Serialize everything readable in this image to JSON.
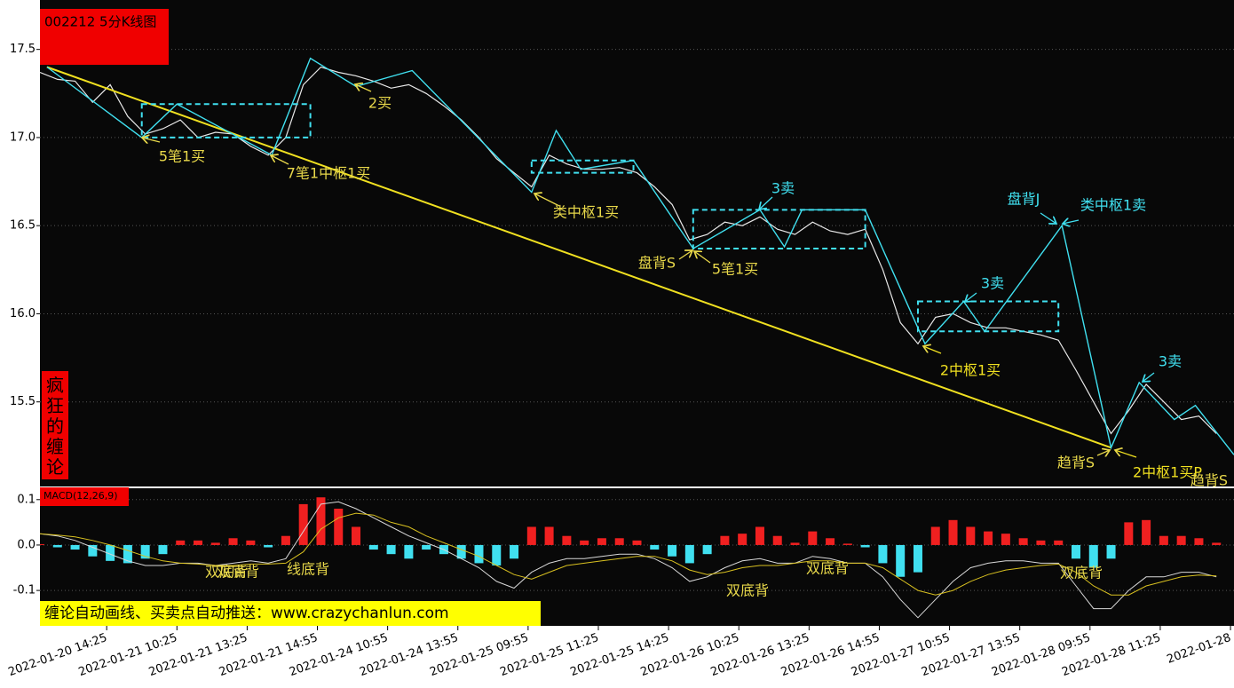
{
  "chart_data": [
    {
      "type": "line",
      "title": "002212 5分K线图",
      "side_label": "疯狂的缠论",
      "xlim": [
        0,
        340
      ],
      "ylim": [
        15.02,
        17.73
      ],
      "yticks": [
        17.5,
        {
          "value": 17.0,
          "label": "17.0"
        },
        16.5,
        {
          "value": 16.0,
          "label": "16.0"
        },
        15.5
      ],
      "xticks": [
        {
          "value": 19,
          "label": "2022-01-20 14:25"
        },
        {
          "value": 39,
          "label": "2022-01-21 10:25"
        },
        {
          "value": 59,
          "label": "2022-01-21 13:25"
        },
        {
          "value": 79,
          "label": "2022-01-21 14:55"
        },
        {
          "value": 99,
          "label": "2022-01-24 10:55"
        },
        {
          "value": 119,
          "label": "2022-01-24 13:55"
        },
        {
          "value": 139,
          "label": "2022-01-25 09:55"
        },
        {
          "value": 159,
          "label": "2022-01-25 11:25"
        },
        {
          "value": 179,
          "label": "2022-01-25 14:25"
        },
        {
          "value": 199,
          "label": "2022-01-26 10:25"
        },
        {
          "value": 219,
          "label": "2022-01-26 13:25"
        },
        {
          "value": 239,
          "label": "2022-01-26 14:55"
        },
        {
          "value": 259,
          "label": "2022-01-27 10:55"
        },
        {
          "value": 279,
          "label": "2022-01-27 13:55"
        },
        {
          "value": 299,
          "label": "2022-01-28 09:55"
        },
        {
          "value": 319,
          "label": "2022-01-28 11:25"
        },
        {
          "value": 339,
          "label": "2022-01-28"
        }
      ],
      "grid": true,
      "x": [
        0,
        5,
        10,
        15,
        20,
        25,
        30,
        35,
        40,
        45,
        50,
        55,
        60,
        65,
        70,
        75,
        80,
        85,
        90,
        95,
        100,
        105,
        110,
        115,
        120,
        125,
        130,
        135,
        140,
        145,
        150,
        155,
        160,
        165,
        170,
        175,
        180,
        185,
        190,
        195,
        200,
        205,
        210,
        215,
        220,
        225,
        230,
        235,
        240,
        245,
        250,
        255,
        260,
        265,
        270,
        275,
        280,
        285,
        290,
        295,
        300,
        305,
        310,
        315,
        320,
        325,
        330,
        335
      ],
      "series": [
        {
          "name": "close",
          "color": "#e8e8e8",
          "values": [
            17.37,
            17.33,
            17.32,
            17.2,
            17.3,
            17.12,
            17.02,
            17.05,
            17.1,
            17.0,
            17.03,
            17.02,
            16.95,
            16.9,
            17.0,
            17.3,
            17.4,
            17.37,
            17.35,
            17.32,
            17.28,
            17.3,
            17.25,
            17.18,
            17.1,
            17.0,
            16.88,
            16.8,
            16.72,
            16.9,
            16.85,
            16.82,
            16.82,
            16.83,
            16.8,
            16.72,
            16.62,
            16.42,
            16.45,
            16.52,
            16.5,
            16.55,
            16.48,
            16.45,
            16.52,
            16.47,
            16.45,
            16.48,
            16.25,
            15.95,
            15.83,
            15.98,
            16.0,
            15.95,
            15.92,
            15.92,
            15.9,
            15.88,
            15.85,
            15.68,
            15.5,
            15.32,
            15.45,
            15.6,
            15.5,
            15.4,
            15.42,
            15.32
          ]
        }
      ],
      "strokes": {
        "color": "#40e0f0",
        "x": [
          2,
          29,
          39,
          66,
          77,
          90,
          106,
          140,
          147,
          154,
          169,
          186,
          205,
          212,
          217,
          235,
          252,
          263,
          269,
          291,
          305,
          313,
          323,
          329,
          340
        ],
        "y": [
          17.4,
          17.0,
          17.19,
          16.9,
          17.45,
          17.29,
          17.38,
          16.69,
          17.04,
          16.82,
          16.87,
          16.37,
          16.59,
          16.38,
          16.59,
          16.59,
          15.83,
          16.07,
          15.9,
          16.5,
          15.24,
          15.61,
          15.4,
          15.48,
          15.2
        ]
      },
      "trendline": {
        "color": "#f0e020",
        "x": [
          2,
          305
        ],
        "y": [
          17.4,
          15.24
        ]
      },
      "boxes": {
        "color": "#40e0f0",
        "items": [
          {
            "x": [
              29,
              77
            ],
            "y": [
              17.0,
              17.19
            ]
          },
          {
            "x": [
              140,
              169
            ],
            "y": [
              16.8,
              16.87
            ]
          },
          {
            "x": [
              186,
              235
            ],
            "y": [
              16.37,
              16.59
            ]
          },
          {
            "x": [
              250,
              290
            ],
            "y": [
              15.9,
              16.07
            ]
          }
        ]
      },
      "annotations": [
        {
          "text": "5笔1买",
          "color": "#e8d84a"
        },
        {
          "text": "7笔1中枢1买",
          "color": "#e8d84a"
        },
        {
          "text": "2买",
          "color": "#e8d84a"
        },
        {
          "text": "类中枢1买",
          "color": "#e8d84a"
        },
        {
          "text": "盘背S",
          "color": "#e8d84a"
        },
        {
          "text": "5笔1买",
          "color": "#e8d84a"
        },
        {
          "text": "3卖",
          "color": "#40e0f0"
        },
        {
          "text": "盘背J",
          "color": "#40e0f0"
        },
        {
          "text": "类中枢1卖",
          "color": "#40e0f0"
        },
        {
          "text": "3卖",
          "color": "#40e0f0"
        },
        {
          "text": "2中枢1买",
          "color": "#f0e020"
        },
        {
          "text": "3卖",
          "color": "#40e0f0"
        },
        {
          "text": "趋背S",
          "color": "#e8d84a"
        },
        {
          "text": "2中枢1买P",
          "color": "#f0e020"
        },
        {
          "text": "趋背S",
          "color": "#e8d84a"
        }
      ]
    },
    {
      "type": "bar",
      "title": "MACD(12,26,9)",
      "xlim": [
        0,
        340
      ],
      "ylim": [
        -0.178,
        0.125
      ],
      "yticks": [
        0.1,
        {
          "value": 0,
          "label": "0.0"
        },
        -0.1
      ],
      "up_color": "#f02020",
      "down_color": "#40e0f0",
      "x": [
        0,
        5,
        10,
        15,
        20,
        25,
        30,
        35,
        40,
        45,
        50,
        55,
        60,
        65,
        70,
        75,
        80,
        85,
        90,
        95,
        100,
        105,
        110,
        115,
        120,
        125,
        130,
        135,
        140,
        145,
        150,
        155,
        160,
        165,
        170,
        175,
        180,
        185,
        190,
        195,
        200,
        205,
        210,
        215,
        220,
        225,
        230,
        235,
        240,
        245,
        250,
        255,
        260,
        265,
        270,
        275,
        280,
        285,
        290,
        295,
        300,
        305,
        310,
        315,
        320,
        325,
        330,
        335
      ],
      "values": [
        0.002,
        -0.005,
        -0.01,
        -0.025,
        -0.035,
        -0.04,
        -0.03,
        -0.02,
        0.01,
        0.01,
        0.005,
        0.015,
        0.01,
        -0.005,
        0.02,
        0.09,
        0.105,
        0.08,
        0.04,
        -0.01,
        -0.02,
        -0.03,
        -0.01,
        -0.02,
        -0.03,
        -0.04,
        -0.045,
        -0.03,
        0.04,
        0.04,
        0.02,
        0.01,
        0.015,
        0.015,
        0.01,
        -0.01,
        -0.025,
        -0.04,
        -0.02,
        0.02,
        0.025,
        0.04,
        0.02,
        0.005,
        0.03,
        0.015,
        0.003,
        -0.005,
        -0.04,
        -0.07,
        -0.06,
        0.04,
        0.055,
        0.04,
        0.03,
        0.025,
        0.015,
        0.01,
        0.01,
        -0.03,
        -0.05,
        -0.03,
        0.05,
        0.055,
        0.02,
        0.02,
        0.015,
        0.005
      ],
      "series": [
        {
          "name": "DIF",
          "color": "#d8d8d8",
          "values": [
            0.025,
            0.02,
            0.01,
            -0.005,
            -0.02,
            -0.035,
            -0.045,
            -0.045,
            -0.04,
            -0.04,
            -0.045,
            -0.04,
            -0.035,
            -0.04,
            -0.03,
            0.03,
            0.09,
            0.095,
            0.08,
            0.06,
            0.04,
            0.02,
            0.005,
            -0.01,
            -0.03,
            -0.05,
            -0.08,
            -0.095,
            -0.06,
            -0.04,
            -0.03,
            -0.03,
            -0.025,
            -0.02,
            -0.02,
            -0.03,
            -0.05,
            -0.08,
            -0.07,
            -0.05,
            -0.035,
            -0.03,
            -0.04,
            -0.04,
            -0.025,
            -0.03,
            -0.04,
            -0.04,
            -0.07,
            -0.12,
            -0.16,
            -0.12,
            -0.08,
            -0.05,
            -0.04,
            -0.035,
            -0.035,
            -0.04,
            -0.04,
            -0.09,
            -0.14,
            -0.14,
            -0.1,
            -0.07,
            -0.07,
            -0.06,
            -0.06,
            -0.07
          ]
        },
        {
          "name": "DEA",
          "color": "#d8c020",
          "values": [
            0.025,
            0.022,
            0.018,
            0.01,
            0.0,
            -0.012,
            -0.025,
            -0.035,
            -0.04,
            -0.042,
            -0.045,
            -0.045,
            -0.042,
            -0.042,
            -0.04,
            -0.015,
            0.035,
            0.06,
            0.07,
            0.066,
            0.05,
            0.04,
            0.02,
            0.005,
            -0.01,
            -0.025,
            -0.045,
            -0.065,
            -0.075,
            -0.06,
            -0.045,
            -0.04,
            -0.035,
            -0.03,
            -0.025,
            -0.025,
            -0.035,
            -0.055,
            -0.065,
            -0.06,
            -0.05,
            -0.045,
            -0.045,
            -0.04,
            -0.035,
            -0.035,
            -0.04,
            -0.04,
            -0.05,
            -0.075,
            -0.1,
            -0.11,
            -0.1,
            -0.08,
            -0.065,
            -0.055,
            -0.05,
            -0.045,
            -0.042,
            -0.06,
            -0.09,
            -0.11,
            -0.11,
            -0.09,
            -0.08,
            -0.07,
            -0.066,
            -0.068
          ]
        }
      ],
      "annotations": [
        {
          "text": "双底背",
          "color": "#e8d84a"
        },
        {
          "text": "双底背",
          "color": "#e8d84a"
        },
        {
          "text": "线底背",
          "color": "#e8d84a"
        },
        {
          "text": "双底背",
          "color": "#e8d84a"
        },
        {
          "text": "双底背",
          "color": "#e8d84a"
        },
        {
          "text": "双底背",
          "color": "#e8d84a"
        }
      ]
    }
  ],
  "banner": "缠论自动画线、买卖点自动推送：www.crazychanlun.com"
}
